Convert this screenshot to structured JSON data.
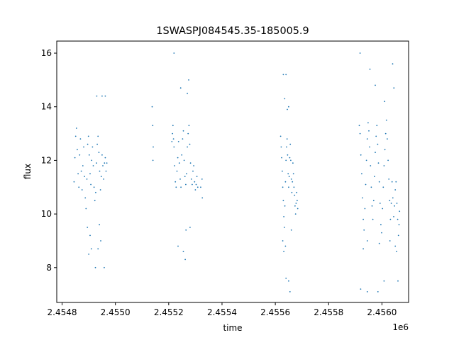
{
  "chart_data": {
    "type": "scatter",
    "title": "1SWASPJ084545.35-185005.9",
    "xlabel": "time",
    "ylabel": "flux",
    "x_offset_label": "1e6",
    "xlim": [
      2454780,
      2456100
    ],
    "ylim": [
      6.7,
      16.45
    ],
    "x_ticks": [
      2454800,
      2455000,
      2455200,
      2455400,
      2455600,
      2455800,
      2456000
    ],
    "x_tick_labels": [
      "2.4548",
      "2.4550",
      "2.4552",
      "2.4554",
      "2.4556",
      "2.4558",
      "2.4560"
    ],
    "y_ticks": [
      8,
      10,
      12,
      14,
      16
    ],
    "y_tick_labels": [
      "8",
      "10",
      "12",
      "14",
      "16"
    ],
    "grid": false,
    "marker_color": "#1f77b4",
    "series": [
      {
        "points": [
          [
            2454845,
            11.2
          ],
          [
            2454848,
            12.1
          ],
          [
            2454851,
            12.9
          ],
          [
            2454854,
            13.2
          ],
          [
            2454857,
            12.4
          ],
          [
            2454860,
            11.5
          ],
          [
            2454863,
            11.0
          ],
          [
            2454866,
            12.2
          ],
          [
            2454869,
            12.8
          ],
          [
            2454872,
            11.6
          ],
          [
            2454875,
            10.9
          ],
          [
            2454878,
            11.8
          ],
          [
            2454881,
            12.5
          ],
          [
            2454884,
            11.4
          ],
          [
            2454887,
            10.6
          ],
          [
            2454890,
            10.2
          ],
          [
            2454893,
            11.3
          ],
          [
            2454896,
            12.6
          ],
          [
            2454899,
            12.9
          ],
          [
            2454902,
            12.2
          ],
          [
            2454905,
            11.5
          ],
          [
            2454908,
            11.1
          ],
          [
            2454911,
            12.0
          ],
          [
            2454914,
            12.5
          ],
          [
            2454917,
            11.8
          ],
          [
            2454920,
            11.0
          ],
          [
            2454923,
            10.5
          ],
          [
            2454926,
            10.8
          ],
          [
            2454929,
            11.9
          ],
          [
            2454932,
            12.6
          ],
          [
            2454935,
            12.9
          ],
          [
            2454938,
            12.3
          ],
          [
            2454941,
            11.6
          ],
          [
            2454944,
            10.9
          ],
          [
            2454947,
            11.4
          ],
          [
            2454950,
            12.2
          ],
          [
            2454953,
            11.8
          ],
          [
            2454956,
            11.3
          ],
          [
            2454959,
            11.9
          ],
          [
            2454962,
            12.1
          ],
          [
            2454965,
            11.6
          ],
          [
            2454968,
            11.9
          ],
          [
            2454895,
            9.5
          ],
          [
            2454900,
            8.5
          ],
          [
            2454910,
            8.7
          ],
          [
            2454925,
            8.0
          ],
          [
            2454935,
            8.7
          ],
          [
            2454940,
            9.6
          ],
          [
            2454945,
            9.0
          ],
          [
            2454958,
            8.0
          ],
          [
            2454905,
            9.2
          ],
          [
            2454930,
            14.4
          ],
          [
            2454950,
            14.4
          ],
          [
            2454962,
            14.4
          ]
        ]
      },
      {
        "points": [
          [
            2455140,
            13.3
          ],
          [
            2455142,
            12.5
          ],
          [
            2455138,
            14.0
          ],
          [
            2455141,
            12.0
          ],
          [
            2455212,
            12.7
          ],
          [
            2455214,
            13.0
          ],
          [
            2455216,
            13.3
          ],
          [
            2455218,
            12.8
          ],
          [
            2455220,
            12.5
          ],
          [
            2455222,
            11.8
          ],
          [
            2455225,
            11.2
          ],
          [
            2455228,
            11.0
          ],
          [
            2455231,
            11.6
          ],
          [
            2455234,
            12.1
          ],
          [
            2455237,
            12.7
          ],
          [
            2455240,
            11.9
          ],
          [
            2455243,
            11.3
          ],
          [
            2455246,
            11.0
          ],
          [
            2455249,
            12.2
          ],
          [
            2455252,
            12.8
          ],
          [
            2455255,
            13.1
          ],
          [
            2455258,
            12.0
          ],
          [
            2455261,
            11.4
          ],
          [
            2455264,
            11.1
          ],
          [
            2455267,
            11.5
          ],
          [
            2455270,
            12.5
          ],
          [
            2455273,
            13.0
          ],
          [
            2455276,
            13.3
          ],
          [
            2455279,
            12.6
          ],
          [
            2455282,
            11.9
          ],
          [
            2455285,
            11.3
          ],
          [
            2455288,
            11.1
          ],
          [
            2455291,
            11.6
          ],
          [
            2455294,
            11.8
          ],
          [
            2455297,
            11.2
          ],
          [
            2455300,
            10.9
          ],
          [
            2455303,
            11.1
          ],
          [
            2455306,
            11.4
          ],
          [
            2455309,
            11.0
          ],
          [
            2455320,
            11.0
          ],
          [
            2455326,
            10.6
          ],
          [
            2455325,
            11.3
          ],
          [
            2455220,
            16.0
          ],
          [
            2455245,
            14.7
          ],
          [
            2455235,
            8.8
          ],
          [
            2455255,
            8.6
          ],
          [
            2455265,
            9.4
          ],
          [
            2455262,
            8.3
          ],
          [
            2455280,
            9.5
          ],
          [
            2455275,
            15.0
          ],
          [
            2455270,
            14.5
          ]
        ]
      },
      {
        "points": [
          [
            2455620,
            12.9
          ],
          [
            2455622,
            12.5
          ],
          [
            2455624,
            12.1
          ],
          [
            2455626,
            11.6
          ],
          [
            2455628,
            11.0
          ],
          [
            2455630,
            10.5
          ],
          [
            2455632,
            9.9
          ],
          [
            2455634,
            9.5
          ],
          [
            2455636,
            10.3
          ],
          [
            2455638,
            11.2
          ],
          [
            2455640,
            12.0
          ],
          [
            2455642,
            12.5
          ],
          [
            2455644,
            12.8
          ],
          [
            2455646,
            12.2
          ],
          [
            2455648,
            11.5
          ],
          [
            2455650,
            11.0
          ],
          [
            2455652,
            11.4
          ],
          [
            2455654,
            12.1
          ],
          [
            2455656,
            12.6
          ],
          [
            2455658,
            12.0
          ],
          [
            2455660,
            11.3
          ],
          [
            2455662,
            10.8
          ],
          [
            2455664,
            11.2
          ],
          [
            2455666,
            11.9
          ],
          [
            2455668,
            11.5
          ],
          [
            2455670,
            11.0
          ],
          [
            2455672,
            10.7
          ],
          [
            2455674,
            10.3
          ],
          [
            2455676,
            10.0
          ],
          [
            2455678,
            10.4
          ],
          [
            2455680,
            10.8
          ],
          [
            2455682,
            10.5
          ],
          [
            2455684,
            10.2
          ],
          [
            2455630,
            15.2
          ],
          [
            2455640,
            15.2
          ],
          [
            2455635,
            14.3
          ],
          [
            2455650,
            14.0
          ],
          [
            2455645,
            13.9
          ],
          [
            2455632,
            8.6
          ],
          [
            2455638,
            8.8
          ],
          [
            2455640,
            7.6
          ],
          [
            2455650,
            7.5
          ],
          [
            2455655,
            7.1
          ],
          [
            2455628,
            9.0
          ],
          [
            2455660,
            9.4
          ]
        ]
      },
      {
        "points": [
          [
            2455915,
            13.3
          ],
          [
            2455918,
            13.0
          ],
          [
            2455921,
            12.2
          ],
          [
            2455924,
            11.5
          ],
          [
            2455927,
            10.6
          ],
          [
            2455930,
            9.8
          ],
          [
            2455933,
            9.4
          ],
          [
            2455936,
            10.2
          ],
          [
            2455939,
            11.1
          ],
          [
            2455942,
            12.0
          ],
          [
            2455945,
            12.8
          ],
          [
            2455948,
            13.4
          ],
          [
            2455951,
            13.1
          ],
          [
            2455954,
            12.5
          ],
          [
            2455957,
            11.8
          ],
          [
            2455960,
            11.0
          ],
          [
            2455963,
            10.3
          ],
          [
            2455966,
            9.8
          ],
          [
            2455969,
            10.5
          ],
          [
            2455972,
            11.4
          ],
          [
            2455975,
            12.3
          ],
          [
            2455978,
            12.9
          ],
          [
            2455981,
            13.3
          ],
          [
            2455984,
            12.6
          ],
          [
            2455987,
            11.9
          ],
          [
            2455990,
            11.2
          ],
          [
            2455993,
            10.4
          ],
          [
            2455996,
            9.6
          ],
          [
            2455999,
            9.3
          ],
          [
            2456002,
            10.2
          ],
          [
            2456005,
            11.0
          ],
          [
            2456008,
            11.8
          ],
          [
            2456011,
            12.4
          ],
          [
            2456014,
            13.0
          ],
          [
            2456017,
            13.5
          ],
          [
            2456020,
            12.8
          ],
          [
            2456023,
            12.0
          ],
          [
            2456026,
            11.3
          ],
          [
            2456029,
            10.5
          ],
          [
            2456032,
            9.8
          ],
          [
            2456035,
            10.4
          ],
          [
            2456038,
            11.2
          ],
          [
            2456041,
            10.6
          ],
          [
            2456044,
            9.9
          ],
          [
            2456047,
            10.3
          ],
          [
            2456050,
            10.9
          ],
          [
            2456053,
            11.2
          ],
          [
            2456056,
            10.4
          ],
          [
            2456059,
            9.8
          ],
          [
            2456062,
            9.2
          ],
          [
            2456064,
            9.6
          ],
          [
            2456066,
            10.1
          ],
          [
            2455918,
            16.0
          ],
          [
            2455955,
            15.4
          ],
          [
            2455975,
            14.8
          ],
          [
            2456010,
            14.2
          ],
          [
            2456040,
            15.6
          ],
          [
            2456045,
            14.7
          ],
          [
            2455930,
            8.7
          ],
          [
            2455945,
            9.0
          ],
          [
            2455920,
            7.2
          ],
          [
            2455945,
            7.1
          ],
          [
            2455985,
            7.1
          ],
          [
            2456008,
            7.5
          ],
          [
            2456060,
            7.5
          ],
          [
            2456055,
            8.6
          ],
          [
            2456030,
            9.0
          ],
          [
            2456050,
            8.8
          ],
          [
            2455990,
            8.9
          ]
        ]
      }
    ]
  }
}
